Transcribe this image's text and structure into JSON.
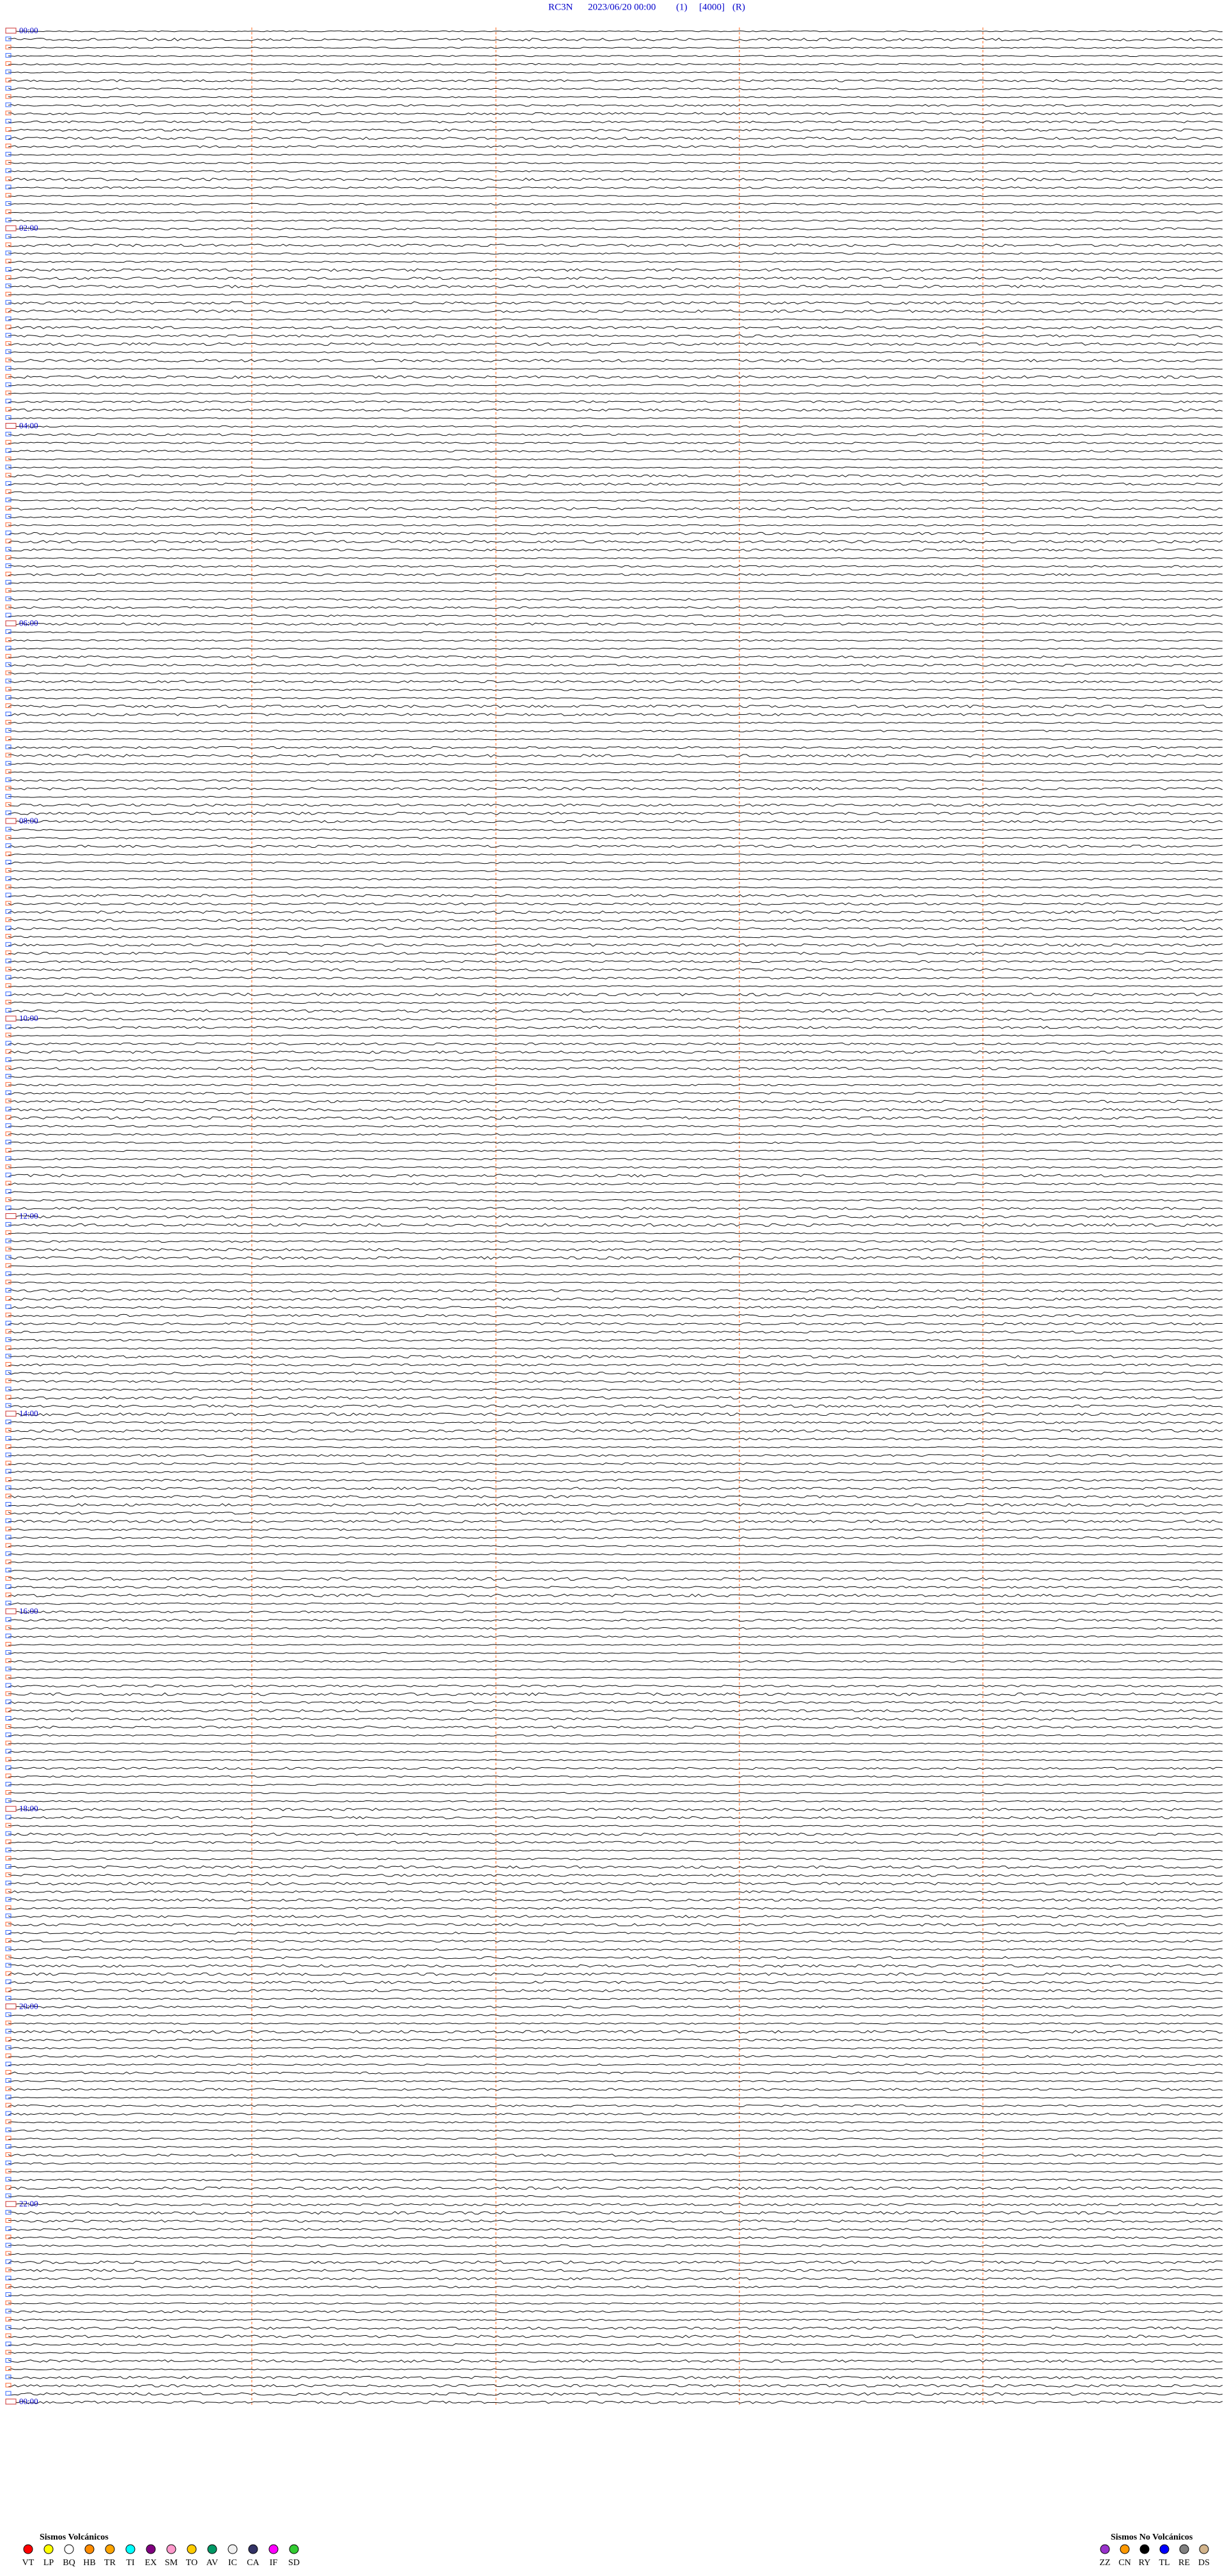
{
  "header": {
    "station": "RC3N",
    "datetime": "2023/06/20 00:00",
    "channel": "(1)",
    "scale": "[4000]",
    "mode": "(R)"
  },
  "hour_labels": [
    "00:00",
    "02:00",
    "04:00",
    "06:00",
    "08:00",
    "10:00",
    "12:00",
    "14:00",
    "16:00",
    "18:00",
    "20:00",
    "22:00",
    "00:00"
  ],
  "legend_volcanic": {
    "title": "Sismos Volcánicos",
    "items": [
      {
        "code": "VT",
        "color": "#ff0000"
      },
      {
        "code": "LP",
        "color": "#ffff00"
      },
      {
        "code": "BQ",
        "color": "#ffffff"
      },
      {
        "code": "HB",
        "color": "#ff8c00"
      },
      {
        "code": "TR",
        "color": "#ffa500"
      },
      {
        "code": "TI",
        "color": "#00ffff"
      },
      {
        "code": "EX",
        "color": "#800080"
      },
      {
        "code": "SM",
        "color": "#ff99cc"
      },
      {
        "code": "TO",
        "color": "#ffcc00"
      },
      {
        "code": "AV",
        "color": "#009966"
      },
      {
        "code": "IC",
        "color": "#f0f0f0"
      },
      {
        "code": "CA",
        "color": "#333366"
      },
      {
        "code": "IF",
        "color": "#ff00ff"
      },
      {
        "code": "SD",
        "color": "#33cc33"
      }
    ]
  },
  "legend_non_volcanic": {
    "title": "Sismos No Volcánicos",
    "items": [
      {
        "code": "ZZ",
        "color": "#9933cc"
      },
      {
        "code": "CN",
        "color": "#ff9900"
      },
      {
        "code": "RY",
        "color": "#000000"
      },
      {
        "code": "TL",
        "color": "#0000ff"
      },
      {
        "code": "RE",
        "color": "#808080"
      },
      {
        "code": "DS",
        "color": "#d2b48c"
      }
    ]
  }
}
